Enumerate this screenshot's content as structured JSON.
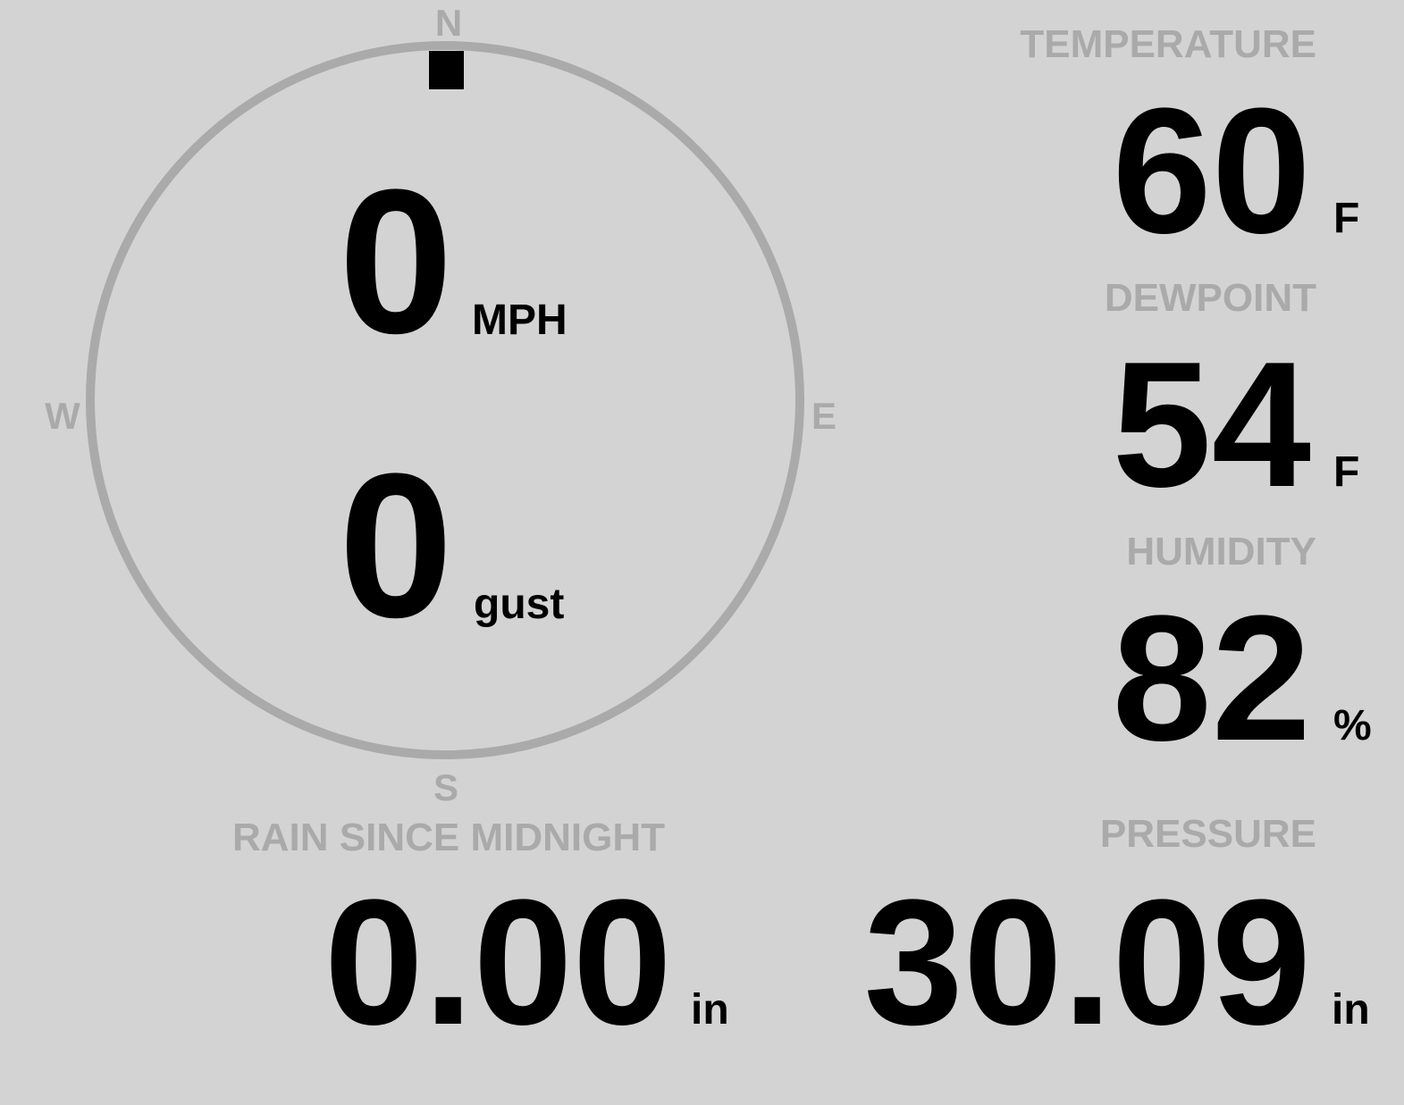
{
  "colors": {
    "background": "#d3d3d3",
    "label": "#aaaaaa",
    "value": "#000000",
    "dial": "#aaaaaa"
  },
  "compass": {
    "north": "N",
    "south": "S",
    "east": "E",
    "west": "W",
    "direction_pointer_icon": "square-marker",
    "wind_direction_deg": 0
  },
  "wind": {
    "speed": "0",
    "speed_unit": "MPH",
    "gust": "0",
    "gust_unit": "gust"
  },
  "temperature": {
    "label": "TEMPERATURE",
    "value": "60",
    "unit": "F"
  },
  "dewpoint": {
    "label": "DEWPOINT",
    "value": "54",
    "unit": "F"
  },
  "humidity": {
    "label": "HUMIDITY",
    "value": "82",
    "unit": "%"
  },
  "pressure": {
    "label": "PRESSURE",
    "value": "30.09",
    "unit": "in"
  },
  "rain": {
    "label": "RAIN SINCE MIDNIGHT",
    "value": "0.00",
    "unit": "in"
  }
}
